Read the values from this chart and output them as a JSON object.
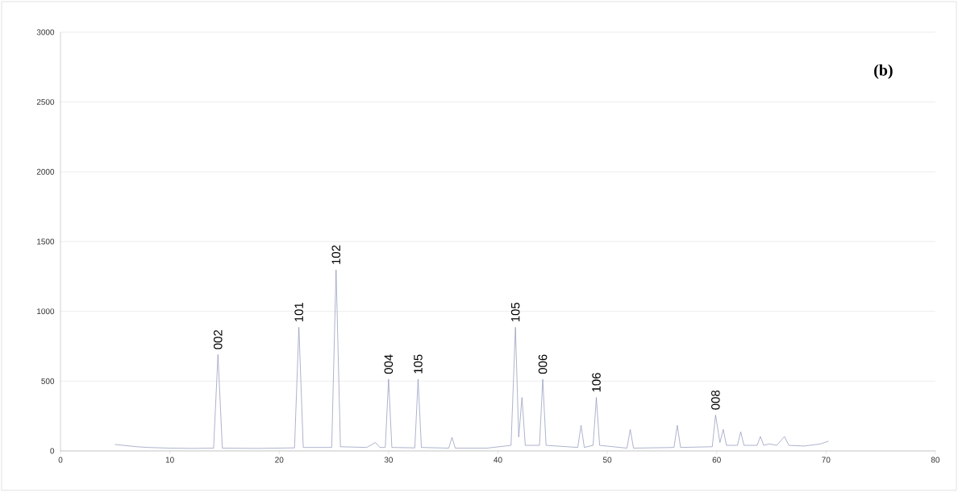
{
  "chart_data": {
    "type": "line",
    "color": "#8a94b8",
    "x": [
      5,
      6,
      7,
      8,
      10,
      12,
      14.0,
      14.4,
      14.8,
      18,
      21.4,
      21.8,
      22.2,
      24.8,
      25.2,
      25.6,
      28,
      28.8,
      29.2,
      29.7,
      30.0,
      30.3,
      32.4,
      32.7,
      33.0,
      35.5,
      35.8,
      36.1,
      39,
      41.2,
      41.6,
      41.9,
      42.2,
      42.5,
      43.8,
      44.1,
      44.4,
      47.3,
      47.6,
      47.9,
      48.7,
      49.0,
      49.3,
      51.8,
      52.1,
      52.4,
      56.1,
      56.4,
      56.7,
      59.6,
      59.9,
      60.3,
      60.6,
      60.9,
      61.9,
      62.2,
      62.5,
      63.7,
      64.0,
      64.3,
      64.8,
      65.5,
      66.2,
      66.6,
      68,
      69.5,
      70.2
    ],
    "values": [
      46,
      38,
      30,
      25,
      20,
      18,
      20,
      690,
      20,
      18,
      22,
      886,
      25,
      25,
      1297,
      30,
      25,
      60,
      25,
      25,
      514,
      25,
      22,
      514,
      25,
      20,
      97,
      20,
      20,
      40,
      886,
      100,
      383,
      40,
      40,
      514,
      40,
      25,
      183,
      25,
      40,
      383,
      40,
      20,
      154,
      20,
      25,
      183,
      25,
      30,
      257,
      60,
      154,
      40,
      40,
      137,
      40,
      40,
      103,
      40,
      50,
      40,
      103,
      40,
      35,
      50,
      69
    ],
    "xlim": [
      0,
      80
    ],
    "xticks": [
      0,
      10,
      20,
      30,
      40,
      50,
      60,
      70,
      80
    ],
    "ylim": [
      0,
      3000
    ],
    "yticks": [
      0,
      500,
      1000,
      1500,
      2000,
      2500,
      3000
    ],
    "grid": "y",
    "marker": "none",
    "line_style": "solid",
    "annotations": [
      {
        "text": "002",
        "x": 14.4,
        "y": 690
      },
      {
        "text": "101",
        "x": 21.8,
        "y": 886
      },
      {
        "text": "102",
        "x": 25.2,
        "y": 1297
      },
      {
        "text": "004",
        "x": 30.0,
        "y": 514
      },
      {
        "text": "105",
        "x": 32.7,
        "y": 514
      },
      {
        "text": "105",
        "x": 41.6,
        "y": 886
      },
      {
        "text": "006",
        "x": 44.1,
        "y": 514
      },
      {
        "text": "106",
        "x": 49.0,
        "y": 383
      },
      {
        "text": "008",
        "x": 59.9,
        "y": 257
      },
      "**(b)**"
    ]
  }
}
